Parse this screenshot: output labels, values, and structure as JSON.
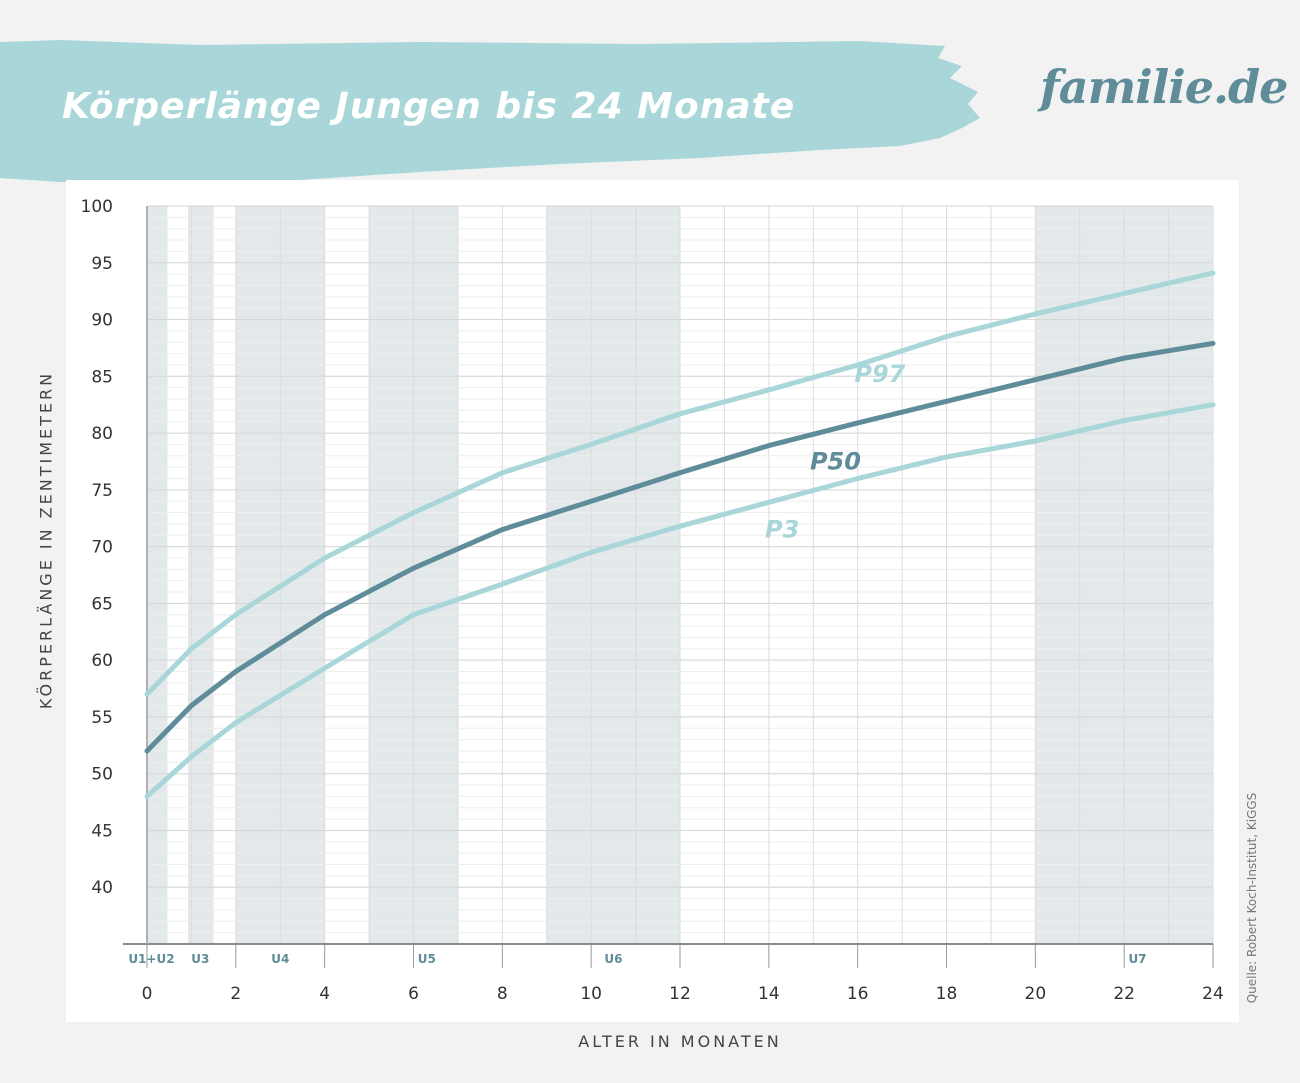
{
  "header": {
    "title": "Körperlänge Jungen bis 24 Monate",
    "logo": "familie.de",
    "brush_color": "#a9d7d9"
  },
  "source": "Quelle: Robert Koch-Institut, KiGGS",
  "chart_data": {
    "type": "line",
    "xlabel": "ALTER IN MONATEN",
    "ylabel": "KÖRPERLÄNGE IN ZENTIMETERN",
    "xlim": [
      0,
      24
    ],
    "ylim": [
      35,
      100
    ],
    "x_ticks": [
      0,
      2,
      4,
      6,
      8,
      10,
      12,
      14,
      16,
      18,
      20,
      22,
      24
    ],
    "y_ticks": [
      40,
      45,
      50,
      55,
      60,
      65,
      70,
      75,
      80,
      85,
      90,
      95,
      100
    ],
    "grid": true,
    "series": [
      {
        "name": "P97",
        "color": "#a9d7d9",
        "x": [
          0,
          1,
          2,
          4,
          6,
          8,
          10,
          12,
          14,
          16,
          18,
          20,
          22,
          24
        ],
        "values": [
          57,
          61,
          64,
          69,
          73,
          76.5,
          79,
          81.7,
          83.8,
          86,
          88.5,
          90.5,
          92.3,
          94.1
        ]
      },
      {
        "name": "P50",
        "color": "#5e8d99",
        "x": [
          0,
          1,
          2,
          4,
          6,
          8,
          10,
          12,
          14,
          16,
          18,
          20,
          22,
          24
        ],
        "values": [
          52,
          56,
          59,
          64,
          68.1,
          71.5,
          74,
          76.5,
          78.9,
          80.9,
          82.8,
          84.7,
          86.6,
          87.9
        ]
      },
      {
        "name": "P3",
        "color": "#a9d7d9",
        "x": [
          0,
          1,
          2,
          4,
          6,
          8,
          10,
          12,
          14,
          16,
          18,
          20,
          22,
          24
        ],
        "values": [
          48,
          51.5,
          54.5,
          59.3,
          64,
          66.7,
          69.5,
          71.8,
          73.9,
          76,
          77.9,
          79.3,
          81.1,
          82.5
        ]
      }
    ],
    "series_labels": [
      {
        "text": "P97",
        "x": 16.5,
        "y": 84.5,
        "color": "#a9d7d9"
      },
      {
        "text": "P50",
        "x": 15.5,
        "y": 76.8,
        "color": "#5e8d99"
      },
      {
        "text": "P3",
        "x": 14.3,
        "y": 70.8,
        "color": "#a9d7d9"
      }
    ],
    "checkups": [
      {
        "label": "U1+U2",
        "x_start": 0,
        "x_end": 0.46,
        "label_x": 0.1
      },
      {
        "label": "U3",
        "x_start": 0.92,
        "x_end": 1.5,
        "label_x": 1.2
      },
      {
        "label": "U4",
        "x_start": 2,
        "x_end": 4,
        "label_x": 3
      },
      {
        "label": "U5",
        "x_start": 5,
        "x_end": 7,
        "label_x": 6.3
      },
      {
        "label": "U6",
        "x_start": 9,
        "x_end": 12,
        "label_x": 10.5
      },
      {
        "label": "U7",
        "x_start": 20,
        "x_end": 24,
        "label_x": 22.3
      }
    ],
    "band_color": "#e3e8ea",
    "checkup_label_color": "#5e8d99"
  }
}
